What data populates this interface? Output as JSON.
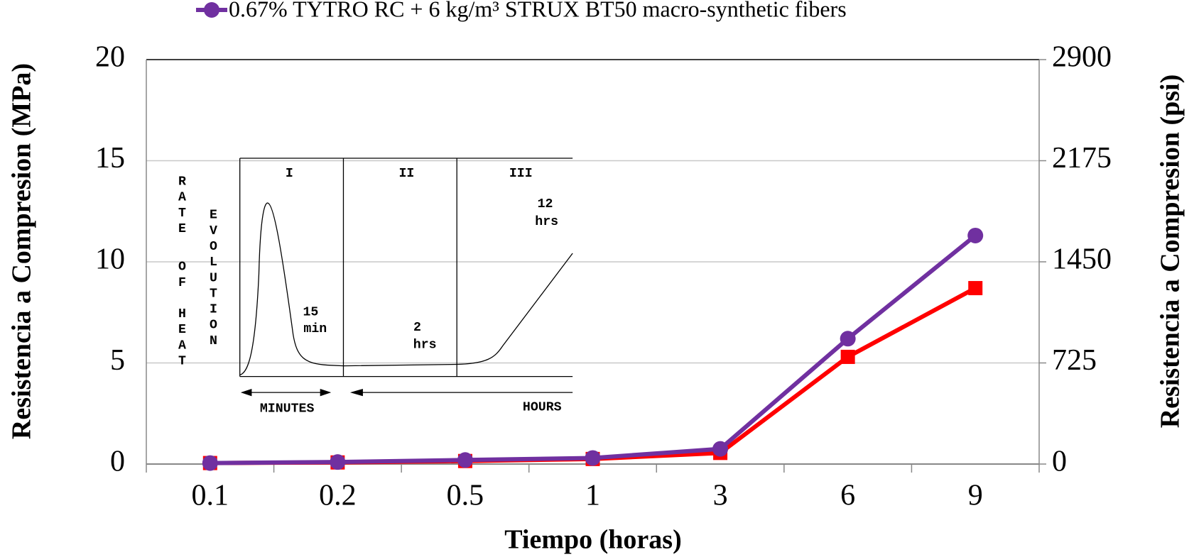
{
  "chart_data": {
    "type": "line",
    "y_label": "Resistencia a Compresion (MPa)",
    "y2_label": "Resistencia a Compresion (psi)",
    "x_label": "Tiempo (horas)",
    "categories": [
      "0.1",
      "0.2",
      "0.5",
      "1",
      "3",
      "6",
      "9"
    ],
    "series": [
      {
        "color": "#ff0000",
        "marker": "square",
        "values": [
          0.05,
          0.08,
          0.15,
          0.25,
          0.55,
          5.3,
          8.7
        ]
      },
      {
        "name": "0.67% TYTRO RC + 6 kg/m³ STRUX BT50 macro-synthetic fibers",
        "color": "#7030a0",
        "marker": "circle",
        "values": [
          0.05,
          0.1,
          0.2,
          0.3,
          0.75,
          6.2,
          11.3
        ]
      }
    ],
    "ylim": [
      0,
      20
    ],
    "yticks": [
      0,
      5,
      10,
      15,
      20
    ],
    "y2lim": [
      0,
      2900
    ],
    "y2ticks": [
      0,
      725,
      1450,
      2175,
      2900
    ],
    "grid": true,
    "legend": "top"
  },
  "inset": {
    "stage_labels": [
      "I",
      "II",
      "III"
    ],
    "y_label": [
      "RATE",
      "OF",
      "HEAT",
      "EVOLUTION"
    ],
    "time_labels": [
      [
        "15",
        "min"
      ],
      [
        "2",
        "hrs"
      ],
      [
        "12",
        "hrs"
      ]
    ],
    "x_labels": [
      "MINUTES",
      "HOURS"
    ]
  }
}
